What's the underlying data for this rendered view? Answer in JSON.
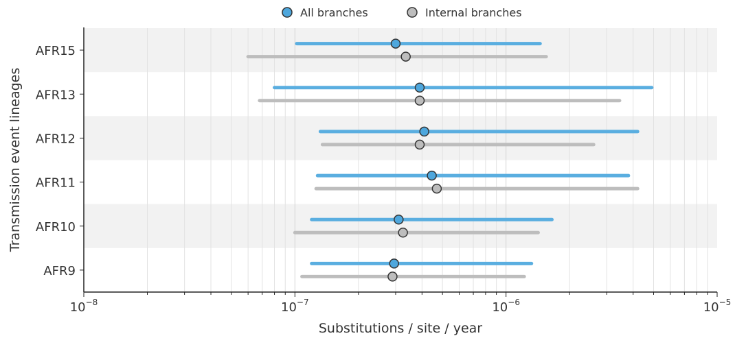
{
  "chart_data": {
    "type": "scatter",
    "xscale": "log",
    "xlim": [
      1e-08,
      1e-05
    ],
    "xlabel": "Substitutions / site / year",
    "ylabel": "Transmission event lineages",
    "categories": [
      "AFR15",
      "AFR13",
      "AFR12",
      "AFR11",
      "AFR10",
      "AFR9"
    ],
    "xticks": [
      {
        "value": 1e-08,
        "base": "10",
        "exp": "−8"
      },
      {
        "value": 1e-07,
        "base": "10",
        "exp": "−7"
      },
      {
        "value": 1e-06,
        "base": "10",
        "exp": "−6"
      },
      {
        "value": 1e-05,
        "base": "10",
        "exp": "−5"
      }
    ],
    "grid": true,
    "legend": {
      "position": "top-center"
    },
    "series": [
      {
        "name": "All branches",
        "line_color": "#5aaee0",
        "marker_color": "#4ea7dd",
        "points": [
          {
            "category": "AFR15",
            "median": 3e-07,
            "low": 1.02e-07,
            "high": 1.45e-06
          },
          {
            "category": "AFR13",
            "median": 3.9e-07,
            "low": 8e-08,
            "high": 4.9e-06
          },
          {
            "category": "AFR12",
            "median": 4.1e-07,
            "low": 1.32e-07,
            "high": 4.2e-06
          },
          {
            "category": "AFR11",
            "median": 4.45e-07,
            "low": 1.28e-07,
            "high": 3.8e-06
          },
          {
            "category": "AFR10",
            "median": 3.1e-07,
            "low": 1.2e-07,
            "high": 1.65e-06
          },
          {
            "category": "AFR9",
            "median": 2.95e-07,
            "low": 1.2e-07,
            "high": 1.32e-06
          }
        ]
      },
      {
        "name": "Internal branches",
        "line_color": "#bdbdbd",
        "marker_color": "#bdbdbd",
        "points": [
          {
            "category": "AFR15",
            "median": 3.35e-07,
            "low": 6e-08,
            "high": 1.55e-06
          },
          {
            "category": "AFR13",
            "median": 3.9e-07,
            "low": 6.8e-08,
            "high": 3.45e-06
          },
          {
            "category": "AFR12",
            "median": 3.9e-07,
            "low": 1.35e-07,
            "high": 2.6e-06
          },
          {
            "category": "AFR11",
            "median": 4.7e-07,
            "low": 1.26e-07,
            "high": 4.2e-06
          },
          {
            "category": "AFR10",
            "median": 3.25e-07,
            "low": 1e-07,
            "high": 1.42e-06
          },
          {
            "category": "AFR9",
            "median": 2.9e-07,
            "low": 1.08e-07,
            "high": 1.22e-06
          }
        ]
      }
    ]
  }
}
